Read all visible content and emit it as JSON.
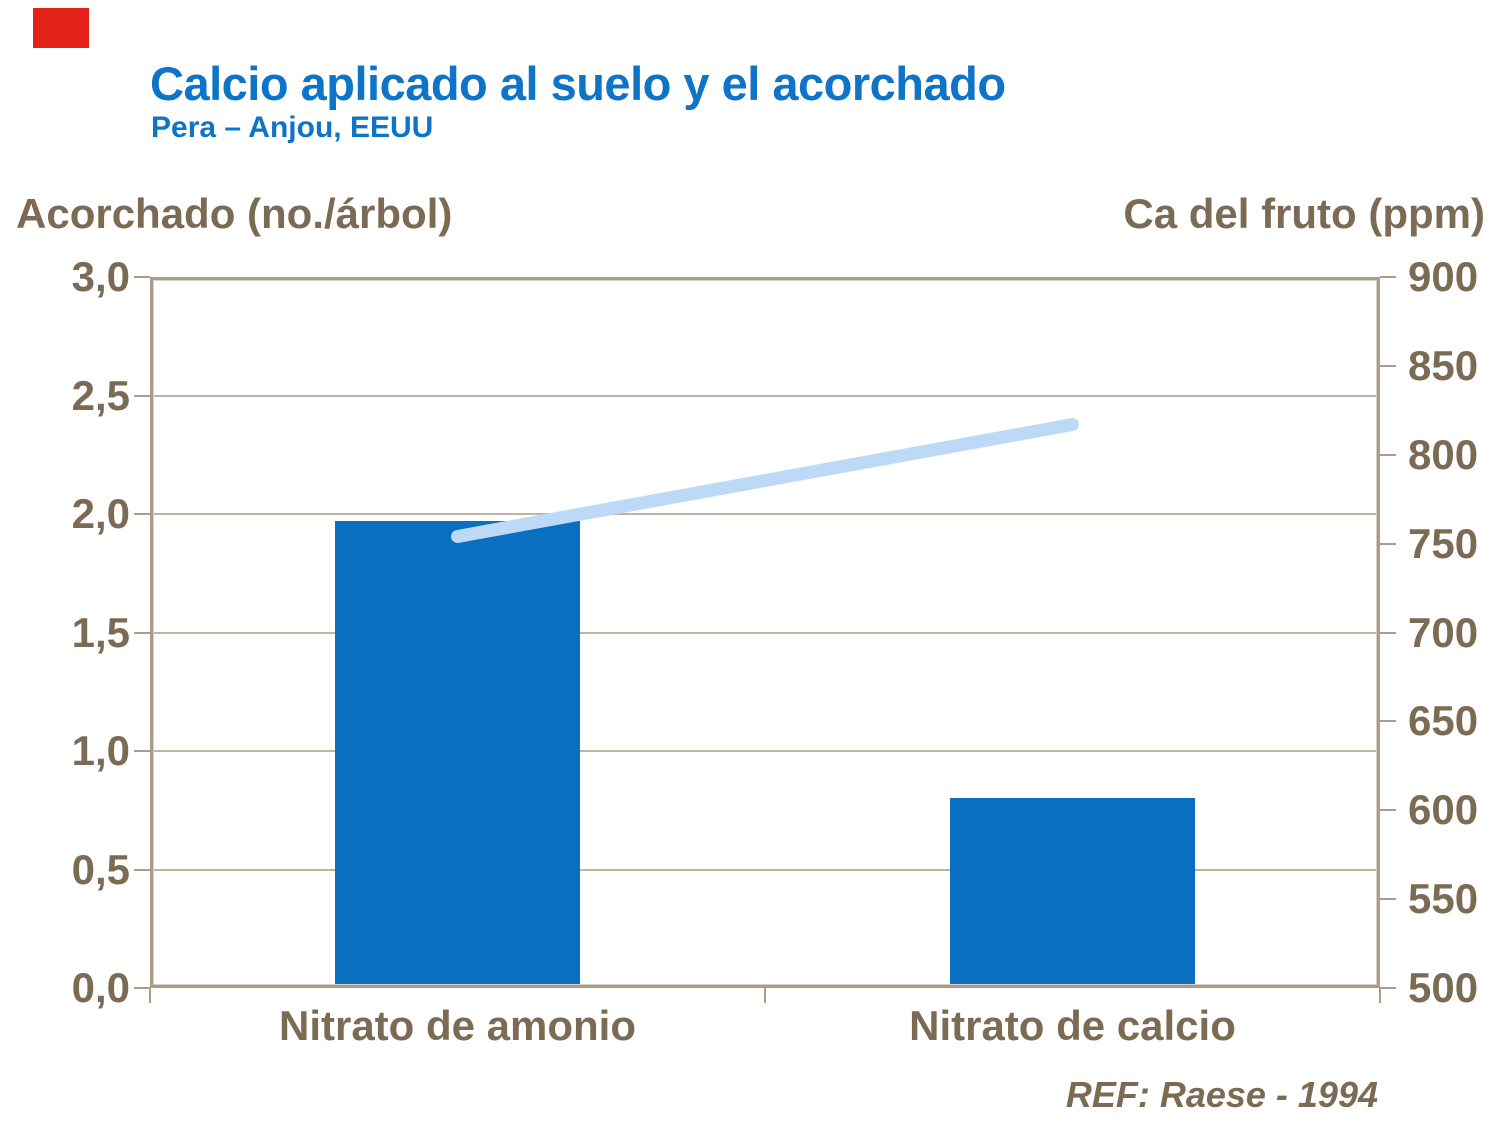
{
  "slide": {
    "title": "Calcio aplicado al suelo y el acorchado",
    "subtitle": "Pera – Anjou, EEUU",
    "reference": "REF: Raese - 1994"
  },
  "colors": {
    "title_blue": "#0E74C8",
    "bar_blue": "#0A6FBF",
    "line_blue": "#BDD9F8",
    "text_brown": "#7C6B54",
    "grid_tan": "#C1B3A2",
    "border_tan": "#AB9C8A",
    "accent_red": "#E32119",
    "background": "#FFFFFF"
  },
  "chart_data": {
    "type": "bar",
    "subtype": "bar-and-line-dual-axis",
    "categories": [
      "Nitrato de amonio",
      "Nitrato de calcio"
    ],
    "series": [
      {
        "name": "Acorchado (no./árbol)",
        "type": "bar",
        "axis": "left",
        "values": [
          1.97,
          0.8
        ],
        "color": "#0A6FBF"
      },
      {
        "name": "Ca del fruto (ppm)",
        "type": "line",
        "axis": "right",
        "values": [
          754,
          817
        ],
        "color": "#BDD9F8"
      }
    ],
    "left_axis": {
      "title": "Acorchado (no./árbol)",
      "min": 0,
      "max": 3,
      "step": 0.5,
      "tick_labels": [
        "3,0",
        "2,5",
        "2,0",
        "1,5",
        "1,0",
        "0,5",
        "0,0"
      ]
    },
    "right_axis": {
      "title": "Ca del fruto (ppm)",
      "min": 500,
      "max": 900,
      "step": 50,
      "tick_labels": [
        "900",
        "850",
        "800",
        "750",
        "700",
        "650",
        "600",
        "550",
        "500"
      ]
    },
    "grid": true,
    "legend": false,
    "annotation": "REF: Raese - 1994"
  }
}
